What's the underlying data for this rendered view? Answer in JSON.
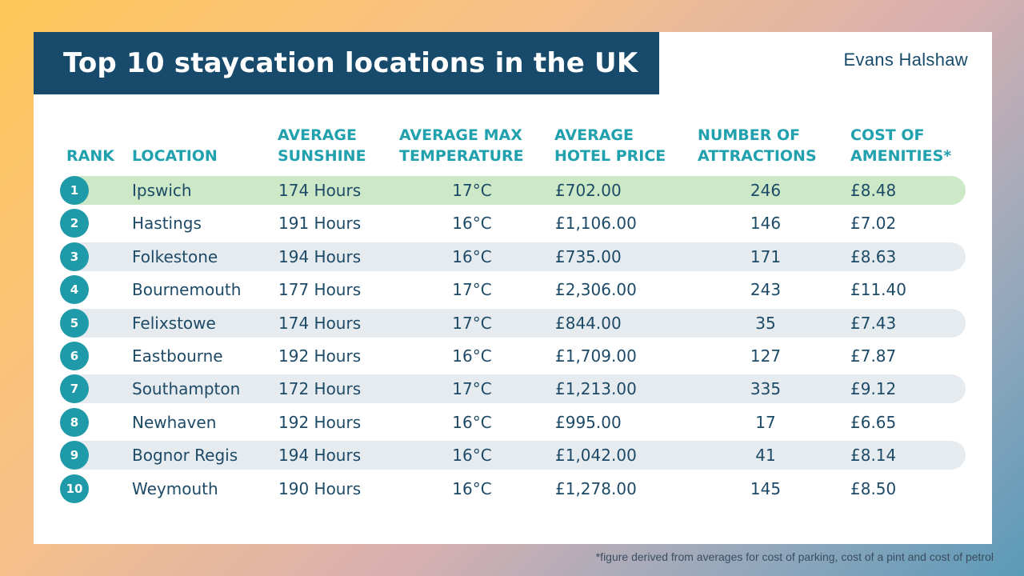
{
  "title": "Top 10 staycation locations in the UK",
  "brand": "Evans Halshaw",
  "footnote": "*figure derived from averages for cost of parking, cost of a pint and cost of petrol",
  "colors": {
    "title_bg": "#184b6b",
    "header_text": "#21a0ad",
    "rank_circle": "#1e9aa8",
    "highlight_row": "#cce8c6",
    "alt_row": "#e6ebf0",
    "body_text": "#1d4a66"
  },
  "chart_data": {
    "type": "table",
    "columns": [
      "RANK",
      "LOCATION",
      "AVERAGE\nSUNSHINE",
      "AVERAGE MAX\nTEMPERATURE",
      "AVERAGE\nHOTEL PRICE",
      "NUMBER OF\nATTRACTIONS",
      "COST OF\nAMENITIES*"
    ],
    "rows": [
      {
        "rank": "1",
        "location": "Ipswich",
        "sunshine": "174 Hours",
        "temperature": "17°C",
        "hotel_price": "£702.00",
        "attractions": "246",
        "amenities": "£8.48"
      },
      {
        "rank": "2",
        "location": "Hastings",
        "sunshine": "191 Hours",
        "temperature": "16°C",
        "hotel_price": "£1,106.00",
        "attractions": "146",
        "amenities": "£7.02"
      },
      {
        "rank": "3",
        "location": "Folkestone",
        "sunshine": "194 Hours",
        "temperature": "16°C",
        "hotel_price": "£735.00",
        "attractions": "171",
        "amenities": "£8.63"
      },
      {
        "rank": "4",
        "location": "Bournemouth",
        "sunshine": "177 Hours",
        "temperature": "17°C",
        "hotel_price": "£2,306.00",
        "attractions": "243",
        "amenities": "£11.40"
      },
      {
        "rank": "5",
        "location": "Felixstowe",
        "sunshine": "174 Hours",
        "temperature": "17°C",
        "hotel_price": "£844.00",
        "attractions": "35",
        "amenities": "£7.43"
      },
      {
        "rank": "6",
        "location": "Eastbourne",
        "sunshine": "192 Hours",
        "temperature": "16°C",
        "hotel_price": "£1,709.00",
        "attractions": "127",
        "amenities": "£7.87"
      },
      {
        "rank": "7",
        "location": "Southampton",
        "sunshine": "172 Hours",
        "temperature": "17°C",
        "hotel_price": "£1,213.00",
        "attractions": "335",
        "amenities": "£9.12"
      },
      {
        "rank": "8",
        "location": "Newhaven",
        "sunshine": "192 Hours",
        "temperature": "16°C",
        "hotel_price": "£995.00",
        "attractions": "17",
        "amenities": "£6.65"
      },
      {
        "rank": "9",
        "location": "Bognor Regis",
        "sunshine": "194 Hours",
        "temperature": "16°C",
        "hotel_price": "£1,042.00",
        "attractions": "41",
        "amenities": "£8.14"
      },
      {
        "rank": "10",
        "location": "Weymouth",
        "sunshine": "190 Hours",
        "temperature": "16°C",
        "hotel_price": "£1,278.00",
        "attractions": "145",
        "amenities": "£8.50"
      }
    ]
  }
}
